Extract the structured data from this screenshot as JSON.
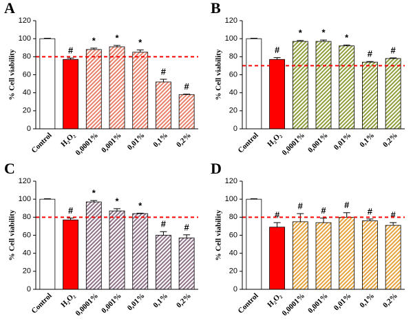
{
  "chart_data": [
    {
      "type": "bar",
      "panel": "A",
      "ylabel": "% Cell viability",
      "categories": [
        "Control",
        "H₂O₂",
        "0,0001%",
        "0,001%",
        "0,01%",
        "0,1%",
        "0,2%"
      ],
      "values": [
        100,
        77,
        88,
        91,
        85,
        52,
        38
      ],
      "errors": [
        0.5,
        1.5,
        1.5,
        1.5,
        2.5,
        3,
        0.5
      ],
      "annotations": [
        null,
        "#",
        "*",
        "*",
        "*",
        "#",
        "#"
      ],
      "colors": [
        "#ffffff",
        "#ff0000",
        "#e8806a",
        "#e8806a",
        "#e8806a",
        "#e8806a",
        "#e8806a"
      ],
      "hatched": [
        false,
        false,
        true,
        true,
        true,
        true,
        true
      ],
      "threshold": 80,
      "threshold_color": "#ff0000",
      "ylim": [
        0,
        120
      ],
      "yticks": [
        0,
        20,
        40,
        60,
        80,
        100,
        120
      ]
    },
    {
      "type": "bar",
      "panel": "B",
      "ylabel": "% Cell viability",
      "categories": [
        "Control",
        "H₂O₂",
        "0,0001%",
        "0,001%",
        "0,01%",
        "0,1%",
        "0,2%"
      ],
      "values": [
        100,
        77,
        97,
        97,
        92,
        74,
        78
      ],
      "errors": [
        0.5,
        2,
        1,
        1.5,
        1,
        0.7,
        0.7
      ],
      "annotations": [
        null,
        "#",
        "*",
        "*",
        "*",
        "#",
        "#"
      ],
      "colors": [
        "#ffffff",
        "#ff0000",
        "#8f9d3a",
        "#8f9d3a",
        "#8f9d3a",
        "#8f9d3a",
        "#8f9d3a"
      ],
      "hatched": [
        false,
        false,
        true,
        true,
        true,
        true,
        true
      ],
      "threshold": 70,
      "threshold_color": "#ff0000",
      "ylim": [
        0,
        120
      ],
      "yticks": [
        0,
        20,
        40,
        60,
        80,
        100,
        120
      ]
    },
    {
      "type": "bar",
      "panel": "C",
      "ylabel": "% Cell viability",
      "categories": [
        "Control",
        "H₂O₂",
        "0,0001%",
        "0,001%",
        "0,01%",
        "0,1%",
        "0,2%"
      ],
      "values": [
        100,
        77,
        97,
        87,
        84,
        60,
        57
      ],
      "errors": [
        0.5,
        2,
        1.5,
        2.5,
        0.5,
        4,
        3.5
      ],
      "annotations": [
        null,
        "#",
        "*",
        "*",
        "*",
        "#",
        "#"
      ],
      "colors": [
        "#ffffff",
        "#ff0000",
        "#8f7289",
        "#8f7289",
        "#8f7289",
        "#8f7289",
        "#8f7289"
      ],
      "hatched": [
        false,
        false,
        true,
        true,
        true,
        true,
        true
      ],
      "threshold": 80,
      "threshold_color": "#ff0000",
      "ylim": [
        0,
        120
      ],
      "yticks": [
        0,
        20,
        40,
        60,
        80,
        100,
        120
      ]
    },
    {
      "type": "bar",
      "panel": "D",
      "ylabel": "% Cell viability",
      "categories": [
        "Control",
        "H₂O₂",
        "0,0001%",
        "0,001%",
        "0,01%",
        "0,1%",
        "0,2%"
      ],
      "values": [
        100,
        69,
        75,
        74,
        80,
        76,
        71
      ],
      "errors": [
        0.5,
        5,
        9,
        5,
        5,
        2,
        3
      ],
      "annotations": [
        null,
        "#",
        "#",
        "#",
        "#",
        "#",
        "#"
      ],
      "colors": [
        "#ffffff",
        "#ff0000",
        "#e6a23a",
        "#e6a23a",
        "#e6a23a",
        "#e6a23a",
        "#e6a23a"
      ],
      "hatched": [
        false,
        false,
        true,
        true,
        true,
        true,
        true
      ],
      "threshold": 80,
      "threshold_color": "#ff0000",
      "ylim": [
        0,
        120
      ],
      "yticks": [
        0,
        20,
        40,
        60,
        80,
        100,
        120
      ]
    }
  ]
}
